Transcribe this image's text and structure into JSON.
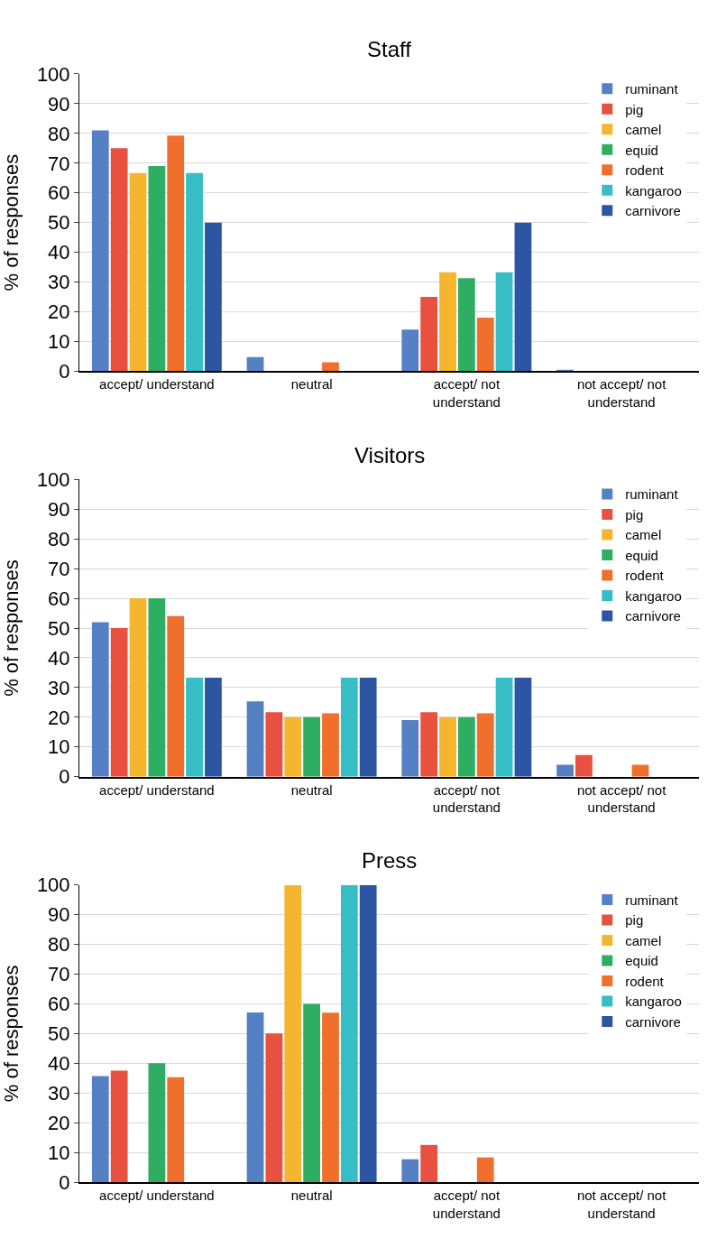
{
  "chart_data": [
    {
      "type": "bar",
      "title": "Staff",
      "ylabel": "% of responses",
      "categories": [
        "accept/ understand",
        "neutral",
        "accept/ not understand",
        "not accept/ not understand"
      ],
      "ylim": [
        0,
        100
      ],
      "yticks": [
        0,
        10,
        20,
        30,
        40,
        50,
        60,
        70,
        80,
        90,
        100
      ],
      "grid": "y",
      "legend": "top right",
      "series": [
        {
          "name": "ruminant",
          "color": "#5580c4",
          "values": [
            81,
            4.7,
            14,
            0.5
          ]
        },
        {
          "name": "pig",
          "color": "#e8503f",
          "values": [
            75,
            0,
            25,
            0
          ]
        },
        {
          "name": "camel",
          "color": "#f6b52e",
          "values": [
            66.7,
            0,
            33.3,
            0
          ]
        },
        {
          "name": "equid",
          "color": "#2fae63",
          "values": [
            69,
            0,
            31.3,
            0
          ]
        },
        {
          "name": "rodent",
          "color": "#ef6f2b",
          "values": [
            79.3,
            3,
            18,
            0
          ]
        },
        {
          "name": "kangaroo",
          "color": "#37bdc6",
          "values": [
            66.7,
            0,
            33.3,
            0
          ]
        },
        {
          "name": "carnivore",
          "color": "#2c55a3",
          "values": [
            50,
            0,
            50,
            0
          ]
        }
      ]
    },
    {
      "type": "bar",
      "title": "Visitors",
      "ylabel": "% of responses",
      "categories": [
        "accept/ understand",
        "neutral",
        "accept/ not understand",
        "not accept/ not understand"
      ],
      "ylim": [
        0,
        100
      ],
      "yticks": [
        0,
        10,
        20,
        30,
        40,
        50,
        60,
        70,
        80,
        90,
        100
      ],
      "grid": "y",
      "legend": "top right",
      "series": [
        {
          "name": "ruminant",
          "color": "#5580c4",
          "values": [
            52,
            25.3,
            19,
            4
          ]
        },
        {
          "name": "pig",
          "color": "#e8503f",
          "values": [
            50,
            21.7,
            21.7,
            7.3
          ]
        },
        {
          "name": "camel",
          "color": "#f6b52e",
          "values": [
            60,
            20,
            20,
            0
          ]
        },
        {
          "name": "equid",
          "color": "#2fae63",
          "values": [
            60,
            20,
            20,
            0
          ]
        },
        {
          "name": "rodent",
          "color": "#ef6f2b",
          "values": [
            54,
            21.3,
            21.3,
            4
          ]
        },
        {
          "name": "kangaroo",
          "color": "#37bdc6",
          "values": [
            33.3,
            33.3,
            33.3,
            0
          ]
        },
        {
          "name": "carnivore",
          "color": "#2c55a3",
          "values": [
            33.3,
            33.3,
            33.3,
            0
          ]
        }
      ]
    },
    {
      "type": "bar",
      "title": "Press",
      "ylabel": "% of responses",
      "categories": [
        "accept/ understand",
        "neutral",
        "accept/ not understand",
        "not accept/ not understand"
      ],
      "ylim": [
        0,
        100
      ],
      "yticks": [
        0,
        10,
        20,
        30,
        40,
        50,
        60,
        70,
        80,
        90,
        100
      ],
      "grid": "y",
      "legend": "top right",
      "series": [
        {
          "name": "ruminant",
          "color": "#5580c4",
          "values": [
            35.7,
            57.1,
            7.7,
            0
          ]
        },
        {
          "name": "pig",
          "color": "#e8503f",
          "values": [
            37.5,
            50,
            12.5,
            0
          ]
        },
        {
          "name": "camel",
          "color": "#f6b52e",
          "values": [
            0,
            100,
            0,
            0
          ]
        },
        {
          "name": "equid",
          "color": "#2fae63",
          "values": [
            40,
            60,
            0,
            0
          ]
        },
        {
          "name": "rodent",
          "color": "#ef6f2b",
          "values": [
            35.3,
            57,
            8.3,
            0
          ]
        },
        {
          "name": "kangaroo",
          "color": "#37bdc6",
          "values": [
            0,
            100,
            0,
            0
          ]
        },
        {
          "name": "carnivore",
          "color": "#2c55a3",
          "values": [
            0,
            100,
            0,
            0
          ]
        }
      ]
    }
  ]
}
